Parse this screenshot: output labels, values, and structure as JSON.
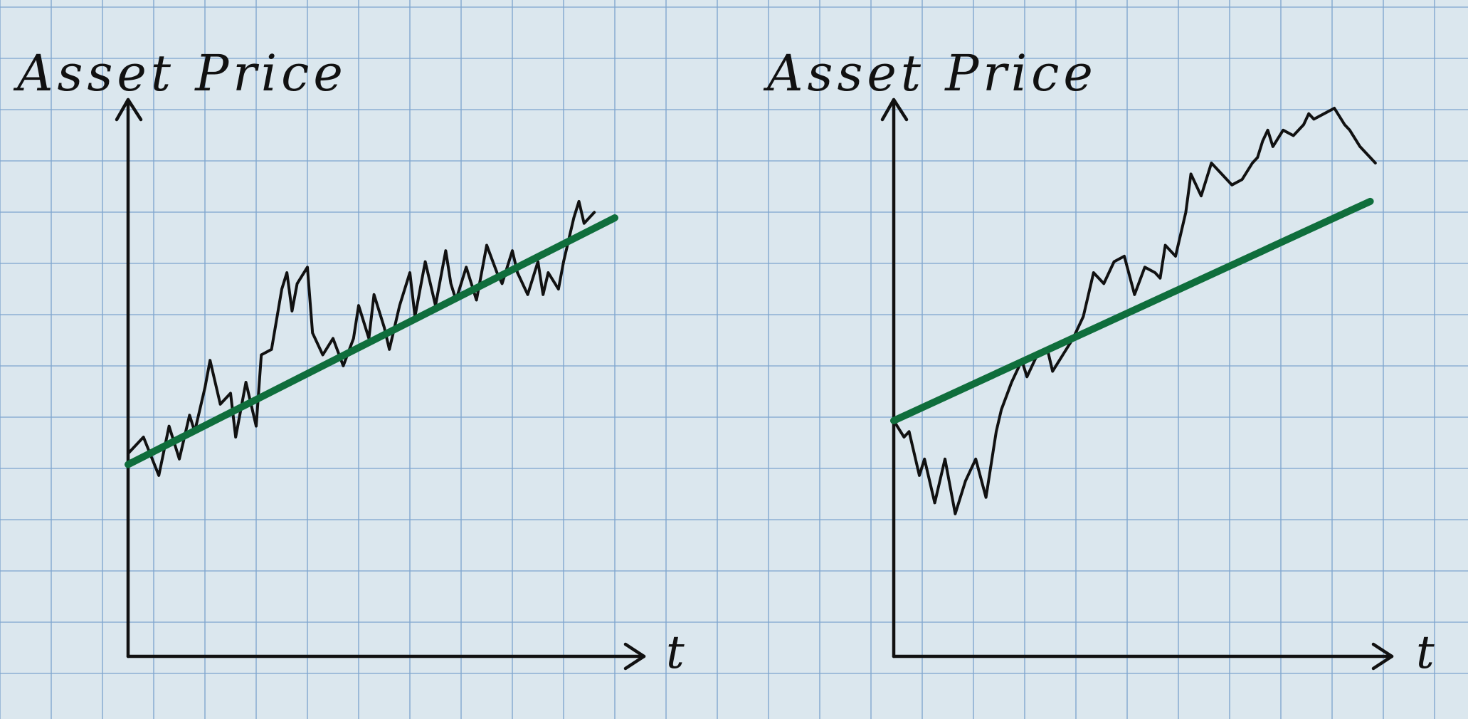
{
  "colors": {
    "paper": "#dbe7ee",
    "grid": "#7fa6cf",
    "ink": "#111111",
    "trend": "#0f6e3c"
  },
  "chart_data": [
    {
      "type": "line",
      "title": "Asset Price",
      "xlabel": "t",
      "ylabel": "",
      "xlim": [
        0,
        100
      ],
      "ylim": [
        0,
        100
      ],
      "grid": true,
      "series": [
        {
          "role": "price",
          "color": "#111111",
          "x": [
            0,
            3,
            6,
            8,
            10,
            12,
            13,
            15,
            16,
            18,
            20,
            21,
            23,
            25,
            26,
            28,
            30,
            31,
            32,
            33,
            35,
            36,
            38,
            40,
            42,
            44,
            45,
            47,
            48,
            50,
            51,
            53,
            55,
            56,
            58,
            60,
            62,
            63,
            64,
            66,
            68,
            70,
            72,
            73,
            75,
            76,
            78,
            80,
            81,
            82,
            84,
            85,
            86,
            87,
            88,
            89,
            90,
            91
          ],
          "y": [
            37,
            40,
            33,
            42,
            36,
            44,
            41,
            49,
            54,
            46,
            48,
            40,
            50,
            42,
            55,
            56,
            67,
            70,
            63,
            68,
            71,
            59,
            55,
            58,
            53,
            58,
            64,
            58,
            66,
            60,
            56,
            64,
            70,
            62,
            72,
            64,
            74,
            68,
            65,
            71,
            65,
            75,
            70,
            68,
            74,
            70,
            66,
            72,
            66,
            70,
            67,
            72,
            76,
            80,
            83,
            79,
            80,
            81
          ]
        },
        {
          "role": "trend",
          "color": "#0f6e3c",
          "x": [
            0,
            95
          ],
          "y": [
            35,
            80
          ]
        }
      ]
    },
    {
      "type": "line",
      "title": "Asset Price",
      "xlabel": "t",
      "ylabel": "",
      "xlim": [
        0,
        100
      ],
      "ylim": [
        0,
        100
      ],
      "grid": true,
      "series": [
        {
          "role": "price",
          "color": "#111111",
          "x": [
            0,
            2,
            3,
            5,
            6,
            8,
            10,
            12,
            14,
            16,
            18,
            20,
            21,
            23,
            25,
            26,
            28,
            30,
            31,
            33,
            35,
            37,
            39,
            41,
            43,
            45,
            47,
            49,
            51,
            52,
            53,
            55,
            57,
            58,
            60,
            62,
            64,
            66,
            68,
            70,
            71,
            72,
            73,
            74,
            76,
            78,
            80,
            81,
            82,
            84,
            86,
            88,
            89,
            91,
            93,
            94
          ],
          "y": [
            43,
            40,
            41,
            33,
            36,
            28,
            36,
            26,
            32,
            36,
            29,
            41,
            45,
            50,
            54,
            51,
            55,
            56,
            52,
            55,
            58,
            62,
            70,
            68,
            72,
            73,
            66,
            71,
            70,
            69,
            75,
            73,
            81,
            88,
            84,
            90,
            88,
            86,
            87,
            90,
            91,
            94,
            96,
            93,
            96,
            95,
            97,
            99,
            98,
            99,
            100,
            97,
            96,
            93,
            91,
            90
          ]
        },
        {
          "role": "trend",
          "color": "#0f6e3c",
          "x": [
            0,
            93
          ],
          "y": [
            43,
            83
          ]
        }
      ]
    }
  ]
}
